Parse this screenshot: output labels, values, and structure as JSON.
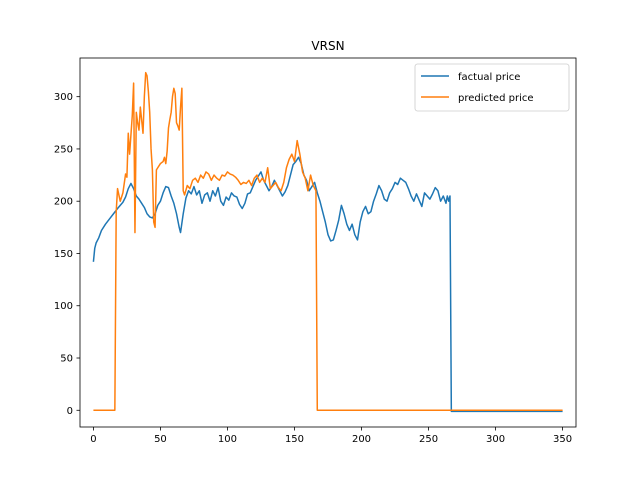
{
  "chart_data": {
    "type": "line",
    "title": "VRSN",
    "xlabel": "",
    "ylabel": "",
    "xlim": [
      -10,
      360
    ],
    "ylim": [
      -16,
      337
    ],
    "xticks": [
      0,
      50,
      100,
      150,
      200,
      250,
      300,
      350
    ],
    "yticks": [
      0,
      50,
      100,
      150,
      200,
      250,
      300
    ],
    "grid": false,
    "legend_position": "top-right",
    "series": [
      {
        "name": "factual price",
        "color": "#1f77b4",
        "points": [
          [
            0,
            142
          ],
          [
            1,
            155
          ],
          [
            2,
            160
          ],
          [
            4,
            165
          ],
          [
            6,
            172
          ],
          [
            9,
            178
          ],
          [
            12,
            183
          ],
          [
            15,
            188
          ],
          [
            18,
            193
          ],
          [
            20,
            196
          ],
          [
            22,
            199
          ],
          [
            24,
            204
          ],
          [
            26,
            212
          ],
          [
            28,
            217
          ],
          [
            30,
            212
          ],
          [
            32,
            205
          ],
          [
            34,
            202
          ],
          [
            36,
            198
          ],
          [
            38,
            194
          ],
          [
            40,
            188
          ],
          [
            42,
            185
          ],
          [
            44,
            184
          ],
          [
            46,
            188
          ],
          [
            48,
            196
          ],
          [
            50,
            200
          ],
          [
            52,
            208
          ],
          [
            54,
            214
          ],
          [
            56,
            213
          ],
          [
            58,
            205
          ],
          [
            60,
            198
          ],
          [
            62,
            188
          ],
          [
            64,
            175
          ],
          [
            65,
            170
          ],
          [
            67,
            188
          ],
          [
            69,
            203
          ],
          [
            71,
            210
          ],
          [
            73,
            207
          ],
          [
            75,
            214
          ],
          [
            77,
            206
          ],
          [
            79,
            210
          ],
          [
            81,
            198
          ],
          [
            83,
            206
          ],
          [
            85,
            208
          ],
          [
            87,
            200
          ],
          [
            89,
            210
          ],
          [
            91,
            205
          ],
          [
            93,
            213
          ],
          [
            95,
            200
          ],
          [
            97,
            196
          ],
          [
            99,
            204
          ],
          [
            101,
            201
          ],
          [
            103,
            208
          ],
          [
            105,
            205
          ],
          [
            107,
            204
          ],
          [
            109,
            197
          ],
          [
            111,
            193
          ],
          [
            113,
            198
          ],
          [
            115,
            207
          ],
          [
            117,
            208
          ],
          [
            119,
            214
          ],
          [
            121,
            220
          ],
          [
            123,
            224
          ],
          [
            125,
            228
          ],
          [
            127,
            220
          ],
          [
            129,
            215
          ],
          [
            131,
            210
          ],
          [
            133,
            214
          ],
          [
            135,
            220
          ],
          [
            137,
            215
          ],
          [
            139,
            210
          ],
          [
            141,
            205
          ],
          [
            143,
            209
          ],
          [
            145,
            215
          ],
          [
            147,
            225
          ],
          [
            149,
            235
          ],
          [
            151,
            238
          ],
          [
            153,
            242
          ],
          [
            155,
            236
          ],
          [
            157,
            225
          ],
          [
            159,
            220
          ],
          [
            161,
            210
          ],
          [
            163,
            214
          ],
          [
            165,
            218
          ],
          [
            167,
            208
          ],
          [
            169,
            200
          ],
          [
            171,
            190
          ],
          [
            173,
            180
          ],
          [
            175,
            168
          ],
          [
            177,
            162
          ],
          [
            179,
            163
          ],
          [
            181,
            172
          ],
          [
            183,
            182
          ],
          [
            185,
            196
          ],
          [
            187,
            188
          ],
          [
            189,
            178
          ],
          [
            191,
            172
          ],
          [
            193,
            178
          ],
          [
            195,
            168
          ],
          [
            197,
            163
          ],
          [
            199,
            180
          ],
          [
            201,
            190
          ],
          [
            203,
            195
          ],
          [
            205,
            188
          ],
          [
            207,
            190
          ],
          [
            209,
            200
          ],
          [
            211,
            207
          ],
          [
            213,
            215
          ],
          [
            215,
            210
          ],
          [
            217,
            202
          ],
          [
            219,
            200
          ],
          [
            221,
            208
          ],
          [
            223,
            212
          ],
          [
            225,
            218
          ],
          [
            227,
            216
          ],
          [
            229,
            222
          ],
          [
            231,
            220
          ],
          [
            233,
            218
          ],
          [
            235,
            212
          ],
          [
            237,
            205
          ],
          [
            239,
            200
          ],
          [
            241,
            207
          ],
          [
            243,
            201
          ],
          [
            245,
            195
          ],
          [
            247,
            208
          ],
          [
            249,
            205
          ],
          [
            251,
            202
          ],
          [
            253,
            207
          ],
          [
            255,
            213
          ],
          [
            257,
            210
          ],
          [
            259,
            200
          ],
          [
            261,
            205
          ],
          [
            263,
            198
          ],
          [
            264,
            205
          ],
          [
            265,
            200
          ],
          [
            266,
            205
          ],
          [
            267,
            -1
          ],
          [
            300,
            -1
          ],
          [
            350,
            -1
          ]
        ]
      },
      {
        "name": "predicted price",
        "color": "#ff7f0e",
        "points": [
          [
            0,
            0
          ],
          [
            10,
            0
          ],
          [
            16,
            0
          ],
          [
            17,
            190
          ],
          [
            18,
            212
          ],
          [
            20,
            200
          ],
          [
            22,
            208
          ],
          [
            24,
            226
          ],
          [
            25,
            223
          ],
          [
            26,
            265
          ],
          [
            27,
            245
          ],
          [
            29,
            282
          ],
          [
            30,
            313
          ],
          [
            31,
            170
          ],
          [
            32,
            285
          ],
          [
            33,
            275
          ],
          [
            34,
            268
          ],
          [
            35,
            290
          ],
          [
            37,
            265
          ],
          [
            38,
            300
          ],
          [
            39,
            323
          ],
          [
            40,
            320
          ],
          [
            41,
            305
          ],
          [
            42,
            285
          ],
          [
            43,
            250
          ],
          [
            44,
            230
          ],
          [
            45,
            180
          ],
          [
            46,
            175
          ],
          [
            47,
            230
          ],
          [
            48,
            232
          ],
          [
            50,
            236
          ],
          [
            52,
            238
          ],
          [
            53,
            242
          ],
          [
            54,
            236
          ],
          [
            55,
            248
          ],
          [
            56,
            270
          ],
          [
            57,
            278
          ],
          [
            58,
            285
          ],
          [
            59,
            300
          ],
          [
            60,
            308
          ],
          [
            61,
            303
          ],
          [
            62,
            275
          ],
          [
            63,
            272
          ],
          [
            64,
            268
          ],
          [
            65,
            290
          ],
          [
            66,
            308
          ],
          [
            67,
            210
          ],
          [
            68,
            206
          ],
          [
            70,
            215
          ],
          [
            72,
            212
          ],
          [
            74,
            220
          ],
          [
            76,
            222
          ],
          [
            78,
            218
          ],
          [
            80,
            225
          ],
          [
            82,
            222
          ],
          [
            84,
            228
          ],
          [
            86,
            226
          ],
          [
            88,
            220
          ],
          [
            90,
            225
          ],
          [
            92,
            222
          ],
          [
            94,
            220
          ],
          [
            96,
            225
          ],
          [
            98,
            224
          ],
          [
            100,
            228
          ],
          [
            102,
            226
          ],
          [
            104,
            225
          ],
          [
            106,
            223
          ],
          [
            108,
            220
          ],
          [
            110,
            216
          ],
          [
            112,
            218
          ],
          [
            114,
            217
          ],
          [
            116,
            220
          ],
          [
            118,
            215
          ],
          [
            120,
            222
          ],
          [
            122,
            225
          ],
          [
            124,
            218
          ],
          [
            126,
            222
          ],
          [
            128,
            218
          ],
          [
            130,
            232
          ],
          [
            132,
            212
          ],
          [
            134,
            215
          ],
          [
            136,
            218
          ],
          [
            138,
            213
          ],
          [
            140,
            210
          ],
          [
            142,
            218
          ],
          [
            144,
            232
          ],
          [
            146,
            240
          ],
          [
            148,
            245
          ],
          [
            150,
            238
          ],
          [
            152,
            258
          ],
          [
            154,
            245
          ],
          [
            156,
            228
          ],
          [
            158,
            222
          ],
          [
            160,
            210
          ],
          [
            162,
            225
          ],
          [
            164,
            215
          ],
          [
            166,
            210
          ],
          [
            167,
            0
          ],
          [
            200,
            0
          ],
          [
            250,
            0
          ],
          [
            300,
            0
          ],
          [
            350,
            0
          ]
        ]
      }
    ]
  }
}
